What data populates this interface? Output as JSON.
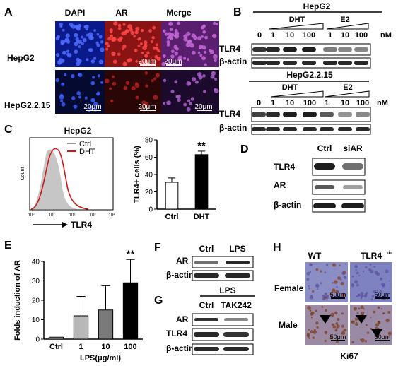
{
  "panels": {
    "A": {
      "letter": "A",
      "col_headers": [
        "DAPI",
        "AR",
        "Merge"
      ],
      "row_labels": [
        "HepG2",
        "HepG2.2.15"
      ],
      "scale_bar": "20μm"
    },
    "B": {
      "letter": "B",
      "cell1": "HepG2",
      "cell2": "HepG2.2.15",
      "dht": "DHT",
      "e2": "E2",
      "doses": [
        "0",
        "1",
        "10",
        "100",
        "1",
        "10",
        "100"
      ],
      "unit": "nM",
      "row1": "TLR4",
      "row2": "β-actin"
    },
    "C": {
      "letter": "C",
      "title": "HepG2",
      "legend": [
        "Ctrl",
        "DHT"
      ],
      "y_axis": "Count",
      "x_axis": "TLR4",
      "x_ticks": [
        "10⁰",
        "10¹",
        "10²",
        "10³",
        "10⁴"
      ]
    },
    "D": {
      "letter": "D",
      "lanes": [
        "Ctrl",
        "siAR"
      ],
      "rows": [
        "TLR4",
        "AR",
        "β-actin"
      ]
    },
    "E": {
      "letter": "E",
      "x_label": "LPS(μg/ml)"
    },
    "F": {
      "letter": "F",
      "lanes": [
        "Ctrl",
        "LPS"
      ],
      "rows": [
        "AR",
        "β-actin"
      ]
    },
    "G": {
      "letter": "G",
      "treatment": "LPS",
      "lanes": [
        "Ctrl",
        "TAK242"
      ],
      "rows": [
        "AR",
        "TLR4",
        "β-actin"
      ]
    },
    "H": {
      "letter": "H",
      "cols": [
        "WT",
        "TLR4"
      ],
      "col2_sup": "-/-",
      "rows": [
        "Female",
        "Male"
      ],
      "scale_bar": "50μm",
      "footer": "Ki67"
    }
  },
  "chart_data": [
    {
      "panel": "C",
      "type": "bar",
      "categories": [
        "Ctrl",
        "DHT"
      ],
      "values": [
        31,
        63
      ],
      "errors": [
        5,
        4
      ],
      "ylabel": "TLR4+ cells (%)",
      "ylim": [
        0,
        80
      ],
      "yticks": [
        "0",
        "20",
        "40",
        "60",
        "80"
      ],
      "significance": [
        "",
        "**"
      ],
      "colors": [
        "#ffffff",
        "#000000"
      ]
    },
    {
      "panel": "E",
      "type": "bar",
      "categories": [
        "Ctrl",
        "1",
        "10",
        "100"
      ],
      "values": [
        1,
        12,
        15,
        29
      ],
      "errors": [
        0,
        10,
        12.5,
        12
      ],
      "ylabel": "Folds induction of AR",
      "xlabel": "LPS(μg/ml)",
      "ylim": [
        0,
        40
      ],
      "yticks": [
        "0",
        "10",
        "20",
        "30",
        "40"
      ],
      "significance": [
        "",
        "",
        "",
        "**"
      ],
      "colors": [
        "#d0d0d0",
        "#b8b8b8",
        "#7a7a7a",
        "#000000"
      ]
    }
  ]
}
